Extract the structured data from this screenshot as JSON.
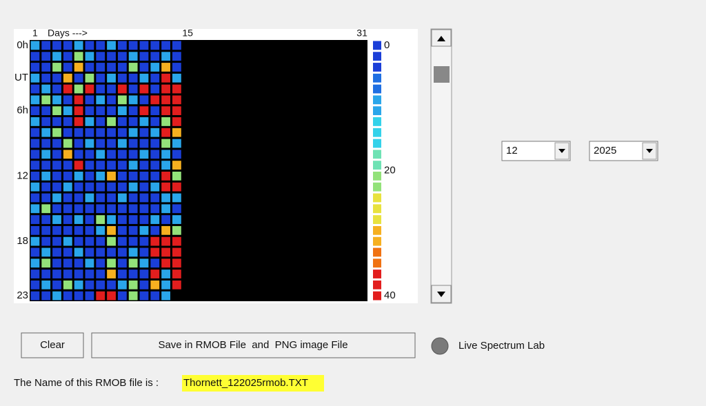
{
  "chart_data": {
    "type": "heatmap",
    "x_label": "Days --->",
    "xlim": [
      1,
      31
    ],
    "xticks": [
      1,
      15,
      31
    ],
    "ylim": [
      0,
      23
    ],
    "yticks": [
      {
        "value": 0,
        "label": "0h"
      },
      {
        "value": 3,
        "label": "UT"
      },
      {
        "value": 6,
        "label": "6h"
      },
      {
        "value": 12,
        "label": "12"
      },
      {
        "value": 18,
        "label": "18"
      },
      {
        "value": 23,
        "label": "23"
      }
    ],
    "clim": [
      0,
      40
    ],
    "cticks": [
      0,
      20,
      40
    ],
    "colormap": [
      "#1b3fd8",
      "#1f6fe2",
      "#2aa6ea",
      "#33d2ea",
      "#6fe2b4",
      "#93e27a",
      "#e8e23e",
      "#f6b020",
      "#f07212",
      "#e21e1e"
    ],
    "background": "#000000",
    "values": [
      [
        10,
        2,
        2,
        2,
        10,
        2,
        2,
        10,
        2,
        2,
        2,
        2,
        2,
        2
      ],
      [
        2,
        2,
        10,
        2,
        22,
        10,
        2,
        2,
        2,
        10,
        2,
        2,
        10,
        2
      ],
      [
        2,
        2,
        22,
        2,
        28,
        2,
        2,
        2,
        2,
        22,
        2,
        10,
        28,
        2
      ],
      [
        10,
        2,
        2,
        28,
        2,
        22,
        2,
        10,
        2,
        2,
        10,
        2,
        38,
        10
      ],
      [
        2,
        10,
        2,
        38,
        22,
        38,
        2,
        2,
        38,
        2,
        38,
        2,
        38,
        38
      ],
      [
        10,
        22,
        10,
        2,
        38,
        2,
        10,
        2,
        22,
        10,
        2,
        38,
        38,
        38
      ],
      [
        2,
        2,
        22,
        10,
        38,
        2,
        2,
        2,
        10,
        2,
        38,
        2,
        38,
        38
      ],
      [
        10,
        2,
        2,
        2,
        38,
        10,
        2,
        22,
        2,
        2,
        10,
        2,
        22,
        38
      ],
      [
        2,
        10,
        22,
        2,
        2,
        2,
        2,
        2,
        2,
        10,
        2,
        10,
        38,
        28
      ],
      [
        2,
        2,
        2,
        22,
        2,
        10,
        2,
        2,
        10,
        2,
        2,
        2,
        22,
        10
      ],
      [
        2,
        10,
        2,
        28,
        2,
        2,
        10,
        2,
        2,
        2,
        10,
        2,
        10,
        2
      ],
      [
        2,
        2,
        2,
        2,
        38,
        2,
        2,
        2,
        2,
        10,
        2,
        2,
        10,
        28
      ],
      [
        2,
        10,
        2,
        2,
        10,
        2,
        10,
        28,
        2,
        2,
        2,
        2,
        38,
        22
      ],
      [
        10,
        2,
        2,
        10,
        2,
        2,
        2,
        2,
        2,
        10,
        2,
        10,
        38,
        38
      ],
      [
        2,
        2,
        10,
        2,
        2,
        10,
        2,
        2,
        10,
        2,
        2,
        2,
        10,
        10
      ],
      [
        10,
        22,
        2,
        2,
        2,
        2,
        2,
        2,
        2,
        2,
        2,
        2,
        10,
        2
      ],
      [
        2,
        2,
        10,
        2,
        10,
        2,
        22,
        10,
        2,
        2,
        2,
        10,
        2,
        10
      ],
      [
        2,
        2,
        2,
        2,
        2,
        2,
        10,
        28,
        2,
        2,
        10,
        2,
        28,
        22
      ],
      [
        10,
        2,
        2,
        10,
        2,
        2,
        2,
        22,
        2,
        2,
        2,
        38,
        38,
        38
      ],
      [
        2,
        10,
        2,
        2,
        10,
        2,
        2,
        2,
        2,
        10,
        2,
        38,
        38,
        38
      ],
      [
        10,
        22,
        2,
        2,
        2,
        10,
        2,
        22,
        2,
        22,
        10,
        2,
        38,
        38
      ],
      [
        2,
        2,
        2,
        2,
        2,
        2,
        2,
        28,
        2,
        2,
        2,
        38,
        10,
        38
      ],
      [
        2,
        10,
        2,
        22,
        10,
        2,
        2,
        2,
        10,
        22,
        2,
        28,
        10,
        38
      ],
      [
        2,
        2,
        10,
        2,
        2,
        2,
        38,
        38,
        2,
        22,
        2,
        2,
        10,
        null
      ]
    ]
  },
  "controls": {
    "month": "12",
    "year": "2025",
    "clear_button": "Clear",
    "save_button": "Save in RMOB File  and  PNG image File",
    "radio_label": "Live Spectrum Lab",
    "file_label": "The Name of this RMOB file is :",
    "file_name": "Thornett_122025rmob.TXT"
  }
}
